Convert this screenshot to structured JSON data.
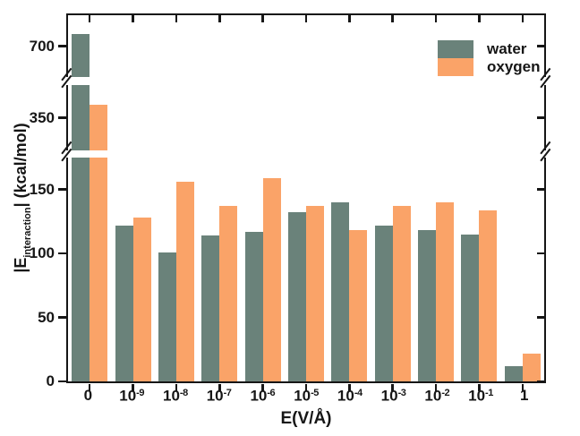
{
  "chart_data": {
    "type": "bar",
    "title": "",
    "xlabel": "E(V/Å)",
    "ylabel": "|E_interaction| (kcal/mol)",
    "ylabel_parts": {
      "pre": "|E",
      "sub": "interaction",
      "post": "| (kcal/mol)"
    },
    "categories": [
      "0",
      "10^-9",
      "10^-8",
      "10^-7",
      "10^-6",
      "10^-5",
      "10^-4",
      "10^-3",
      "10^-2",
      "10^-1",
      "1"
    ],
    "categories_display": [
      {
        "mant": "0",
        "exp": ""
      },
      {
        "mant": "10",
        "exp": "-9"
      },
      {
        "mant": "10",
        "exp": "-8"
      },
      {
        "mant": "10",
        "exp": "-7"
      },
      {
        "mant": "10",
        "exp": "-6"
      },
      {
        "mant": "10",
        "exp": "-5"
      },
      {
        "mant": "10",
        "exp": "-4"
      },
      {
        "mant": "10",
        "exp": "-3"
      },
      {
        "mant": "10",
        "exp": "-2"
      },
      {
        "mant": "10",
        "exp": "-1"
      },
      {
        "mant": "1",
        "exp": ""
      }
    ],
    "series": [
      {
        "name": "water",
        "color": "#6A827A",
        "values": [
          720,
          122,
          101,
          114,
          117,
          132,
          140,
          122,
          118,
          115,
          12
        ]
      },
      {
        "name": "oxygen",
        "color": "#FAA368",
        "values": [
          370,
          128,
          156,
          137,
          159,
          137,
          118,
          137,
          140,
          134,
          22
        ]
      }
    ],
    "y_axis": {
      "unit": "kcal/mol",
      "broken": true,
      "panels": [
        {
          "range": [
            650,
            750
          ],
          "ticks": [
            700
          ]
        },
        {
          "range": [
            300,
            400
          ],
          "ticks": [
            350
          ]
        },
        {
          "range": [
            0,
            175
          ],
          "ticks": [
            150,
            100,
            50,
            0
          ]
        }
      ]
    },
    "legend": {
      "position": "top-right",
      "entries": [
        "water",
        "oxygen"
      ]
    },
    "grid": false
  },
  "colors": {
    "water": "#6A827A",
    "oxygen": "#FAA368",
    "axis": "#161616",
    "background": "#ffffff"
  }
}
